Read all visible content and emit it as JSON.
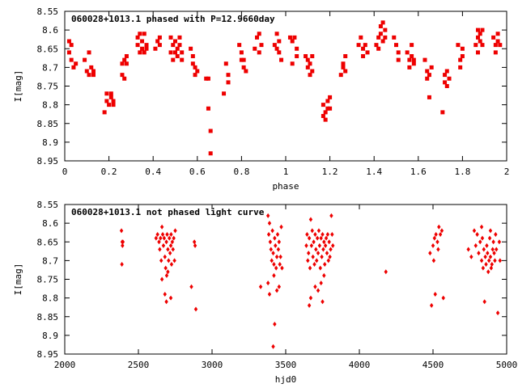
{
  "chart_data": [
    {
      "type": "scatter",
      "title": "060028+1013.1 phased with P=12.9660day",
      "xlabel": "phase",
      "ylabel": "I[mag]",
      "xlim": [
        0,
        2
      ],
      "ylim": [
        8.95,
        8.55
      ],
      "y_inverted": true,
      "xticks": [
        0,
        0.2,
        0.4,
        0.6,
        0.8,
        1,
        1.2,
        1.4,
        1.6,
        1.8,
        2
      ],
      "xtick_labels": [
        "0",
        "0.2",
        "0.4",
        "0.6",
        "0.8",
        "1",
        "1.2",
        "1.4",
        "1.6",
        "1.8",
        "2"
      ],
      "yticks": [
        8.55,
        8.6,
        8.65,
        8.7,
        8.75,
        8.8,
        8.85,
        8.9,
        8.95
      ],
      "ytick_labels": [
        "8.55",
        "8.6",
        "8.65",
        "8.7",
        "8.75",
        "8.8",
        "8.85",
        "8.9",
        "8.95"
      ],
      "grid": false,
      "color": "#ee0000",
      "marker": "filled-square",
      "points": [
        [
          0.02,
          8.63
        ],
        [
          0.02,
          8.66
        ],
        [
          0.03,
          8.64
        ],
        [
          0.03,
          8.68
        ],
        [
          0.04,
          8.7
        ],
        [
          0.05,
          8.69
        ],
        [
          0.09,
          8.68
        ],
        [
          0.1,
          8.71
        ],
        [
          0.11,
          8.66
        ],
        [
          0.11,
          8.72
        ],
        [
          0.12,
          8.7
        ],
        [
          0.13,
          8.71
        ],
        [
          0.13,
          8.72
        ],
        [
          0.18,
          8.82
        ],
        [
          0.19,
          8.77
        ],
        [
          0.19,
          8.79
        ],
        [
          0.2,
          8.8
        ],
        [
          0.21,
          8.77
        ],
        [
          0.21,
          8.78
        ],
        [
          0.22,
          8.79
        ],
        [
          0.22,
          8.8
        ],
        [
          0.26,
          8.69
        ],
        [
          0.26,
          8.72
        ],
        [
          0.27,
          8.68
        ],
        [
          0.27,
          8.73
        ],
        [
          0.28,
          8.67
        ],
        [
          0.28,
          8.69
        ],
        [
          0.33,
          8.62
        ],
        [
          0.33,
          8.64
        ],
        [
          0.34,
          8.61
        ],
        [
          0.34,
          8.66
        ],
        [
          0.35,
          8.63
        ],
        [
          0.35,
          8.65
        ],
        [
          0.36,
          8.61
        ],
        [
          0.36,
          8.66
        ],
        [
          0.37,
          8.64
        ],
        [
          0.37,
          8.65
        ],
        [
          0.41,
          8.65
        ],
        [
          0.42,
          8.63
        ],
        [
          0.43,
          8.62
        ],
        [
          0.43,
          8.64
        ],
        [
          0.48,
          8.62
        ],
        [
          0.48,
          8.66
        ],
        [
          0.49,
          8.64
        ],
        [
          0.49,
          8.68
        ],
        [
          0.5,
          8.63
        ],
        [
          0.5,
          8.66
        ],
        [
          0.51,
          8.65
        ],
        [
          0.51,
          8.67
        ],
        [
          0.52,
          8.62
        ],
        [
          0.52,
          8.64
        ],
        [
          0.53,
          8.66
        ],
        [
          0.53,
          8.68
        ],
        [
          0.57,
          8.65
        ],
        [
          0.58,
          8.67
        ],
        [
          0.58,
          8.69
        ],
        [
          0.59,
          8.7
        ],
        [
          0.59,
          8.72
        ],
        [
          0.6,
          8.71
        ],
        [
          0.64,
          8.73
        ],
        [
          0.65,
          8.73
        ],
        [
          0.65,
          8.81
        ],
        [
          0.66,
          8.87
        ],
        [
          0.66,
          8.93
        ],
        [
          0.72,
          8.77
        ],
        [
          0.73,
          8.69
        ],
        [
          0.74,
          8.72
        ],
        [
          0.74,
          8.74
        ],
        [
          0.79,
          8.64
        ],
        [
          0.8,
          8.66
        ],
        [
          0.8,
          8.68
        ],
        [
          0.81,
          8.68
        ],
        [
          0.81,
          8.7
        ],
        [
          0.82,
          8.71
        ],
        [
          0.86,
          8.65
        ],
        [
          0.87,
          8.62
        ],
        [
          0.88,
          8.61
        ],
        [
          0.88,
          8.66
        ],
        [
          0.89,
          8.64
        ],
        [
          0.95,
          8.64
        ],
        [
          0.96,
          8.61
        ],
        [
          0.96,
          8.65
        ],
        [
          0.97,
          8.63
        ],
        [
          0.97,
          8.66
        ],
        [
          0.98,
          8.68
        ],
        [
          1.02,
          8.62
        ],
        [
          1.03,
          8.63
        ],
        [
          1.03,
          8.69
        ],
        [
          1.04,
          8.62
        ],
        [
          1.05,
          8.65
        ],
        [
          1.05,
          8.67
        ],
        [
          1.09,
          8.67
        ],
        [
          1.1,
          8.68
        ],
        [
          1.1,
          8.7
        ],
        [
          1.11,
          8.72
        ],
        [
          1.11,
          8.69
        ],
        [
          1.12,
          8.71
        ],
        [
          1.12,
          8.67
        ],
        [
          1.17,
          8.8
        ],
        [
          1.17,
          8.83
        ],
        [
          1.18,
          8.82
        ],
        [
          1.18,
          8.84
        ],
        [
          1.19,
          8.81
        ],
        [
          1.19,
          8.79
        ],
        [
          1.2,
          8.78
        ],
        [
          1.2,
          8.81
        ],
        [
          1.25,
          8.72
        ],
        [
          1.26,
          8.7
        ],
        [
          1.26,
          8.69
        ],
        [
          1.27,
          8.67
        ],
        [
          1.27,
          8.71
        ],
        [
          1.33,
          8.64
        ],
        [
          1.34,
          8.62
        ],
        [
          1.35,
          8.65
        ],
        [
          1.35,
          8.67
        ],
        [
          1.36,
          8.64
        ],
        [
          1.37,
          8.66
        ],
        [
          1.41,
          8.64
        ],
        [
          1.42,
          8.62
        ],
        [
          1.42,
          8.65
        ],
        [
          1.43,
          8.59
        ],
        [
          1.43,
          8.61
        ],
        [
          1.44,
          8.58
        ],
        [
          1.44,
          8.63
        ],
        [
          1.45,
          8.6
        ],
        [
          1.45,
          8.62
        ],
        [
          1.49,
          8.62
        ],
        [
          1.5,
          8.64
        ],
        [
          1.51,
          8.66
        ],
        [
          1.51,
          8.68
        ],
        [
          1.55,
          8.66
        ],
        [
          1.56,
          8.68
        ],
        [
          1.56,
          8.7
        ],
        [
          1.57,
          8.64
        ],
        [
          1.57,
          8.67
        ],
        [
          1.58,
          8.68
        ],
        [
          1.58,
          8.69
        ],
        [
          1.63,
          8.68
        ],
        [
          1.64,
          8.71
        ],
        [
          1.64,
          8.73
        ],
        [
          1.65,
          8.72
        ],
        [
          1.65,
          8.78
        ],
        [
          1.66,
          8.7
        ],
        [
          1.71,
          8.82
        ],
        [
          1.72,
          8.72
        ],
        [
          1.72,
          8.74
        ],
        [
          1.73,
          8.71
        ],
        [
          1.73,
          8.75
        ],
        [
          1.74,
          8.73
        ],
        [
          1.78,
          8.64
        ],
        [
          1.79,
          8.68
        ],
        [
          1.79,
          8.7
        ],
        [
          1.8,
          8.65
        ],
        [
          1.8,
          8.67
        ],
        [
          1.86,
          8.64
        ],
        [
          1.87,
          8.6
        ],
        [
          1.87,
          8.62
        ],
        [
          1.87,
          8.66
        ],
        [
          1.88,
          8.63
        ],
        [
          1.88,
          8.61
        ],
        [
          1.89,
          8.6
        ],
        [
          1.89,
          8.64
        ],
        [
          1.94,
          8.62
        ],
        [
          1.95,
          8.64
        ],
        [
          1.95,
          8.66
        ],
        [
          1.96,
          8.61
        ],
        [
          1.96,
          8.63
        ],
        [
          1.97,
          8.64
        ]
      ]
    },
    {
      "type": "scatter",
      "title": "060028+1013.1 not phased light curve",
      "xlabel": "hjd0",
      "ylabel": "I[mag]",
      "xlim": [
        2000,
        5000
      ],
      "ylim": [
        8.95,
        8.55
      ],
      "y_inverted": true,
      "xticks": [
        2000,
        2500,
        3000,
        3500,
        4000,
        4500,
        5000
      ],
      "xtick_labels": [
        "2000",
        "2500",
        "3000",
        "3500",
        "4000",
        "4500",
        "5000"
      ],
      "yticks": [
        8.55,
        8.6,
        8.65,
        8.7,
        8.75,
        8.8,
        8.85,
        8.9,
        8.95
      ],
      "ytick_labels": [
        "8.55",
        "8.6",
        "8.65",
        "8.7",
        "8.75",
        "8.8",
        "8.85",
        "8.9",
        "8.95"
      ],
      "grid": false,
      "color": "#ee0000",
      "marker": "diamond",
      "points": [
        [
          2385,
          8.62
        ],
        [
          2390,
          8.65
        ],
        [
          2392,
          8.66
        ],
        [
          2395,
          8.65
        ],
        [
          2388,
          8.71
        ],
        [
          2620,
          8.64
        ],
        [
          2630,
          8.63
        ],
        [
          2640,
          8.65
        ],
        [
          2645,
          8.67
        ],
        [
          2650,
          8.64
        ],
        [
          2655,
          8.7
        ],
        [
          2660,
          8.61
        ],
        [
          2665,
          8.63
        ],
        [
          2670,
          8.66
        ],
        [
          2675,
          8.64
        ],
        [
          2680,
          8.69
        ],
        [
          2685,
          8.72
        ],
        [
          2690,
          8.65
        ],
        [
          2692,
          8.74
        ],
        [
          2695,
          8.63
        ],
        [
          2700,
          8.67
        ],
        [
          2705,
          8.7
        ],
        [
          2710,
          8.64
        ],
        [
          2715,
          8.68
        ],
        [
          2720,
          8.66
        ],
        [
          2722,
          8.63
        ],
        [
          2725,
          8.71
        ],
        [
          2730,
          8.65
        ],
        [
          2735,
          8.67
        ],
        [
          2740,
          8.64
        ],
        [
          2745,
          8.7
        ],
        [
          2750,
          8.62
        ],
        [
          2680,
          8.79
        ],
        [
          2690,
          8.81
        ],
        [
          2720,
          8.8
        ],
        [
          2660,
          8.75
        ],
        [
          2700,
          8.73
        ],
        [
          2860,
          8.77
        ],
        [
          2885,
          8.66
        ],
        [
          2880,
          8.65
        ],
        [
          2890,
          8.83
        ],
        [
          3330,
          8.77
        ],
        [
          3380,
          8.58
        ],
        [
          3385,
          8.63
        ],
        [
          3390,
          8.6
        ],
        [
          3395,
          8.65
        ],
        [
          3400,
          8.67
        ],
        [
          3405,
          8.7
        ],
        [
          3410,
          8.62
        ],
        [
          3415,
          8.68
        ],
        [
          3420,
          8.71
        ],
        [
          3425,
          8.64
        ],
        [
          3430,
          8.66
        ],
        [
          3435,
          8.72
        ],
        [
          3440,
          8.69
        ],
        [
          3445,
          8.63
        ],
        [
          3450,
          8.67
        ],
        [
          3455,
          8.65
        ],
        [
          3460,
          8.71
        ],
        [
          3465,
          8.69
        ],
        [
          3470,
          8.61
        ],
        [
          3475,
          8.72
        ],
        [
          3380,
          8.76
        ],
        [
          3390,
          8.79
        ],
        [
          3420,
          8.74
        ],
        [
          3440,
          8.78
        ],
        [
          3455,
          8.77
        ],
        [
          3425,
          8.87
        ],
        [
          3415,
          8.93
        ],
        [
          3640,
          8.66
        ],
        [
          3645,
          8.63
        ],
        [
          3650,
          8.7
        ],
        [
          3655,
          8.68
        ],
        [
          3660,
          8.64
        ],
        [
          3665,
          8.72
        ],
        [
          3670,
          8.59
        ],
        [
          3675,
          8.66
        ],
        [
          3680,
          8.62
        ],
        [
          3685,
          8.69
        ],
        [
          3690,
          8.65
        ],
        [
          3695,
          8.71
        ],
        [
          3700,
          8.63
        ],
        [
          3705,
          8.67
        ],
        [
          3710,
          8.7
        ],
        [
          3715,
          8.64
        ],
        [
          3720,
          8.68
        ],
        [
          3725,
          8.62
        ],
        [
          3730,
          8.66
        ],
        [
          3735,
          8.72
        ],
        [
          3740,
          8.64
        ],
        [
          3745,
          8.69
        ],
        [
          3750,
          8.63
        ],
        [
          3755,
          8.67
        ],
        [
          3760,
          8.65
        ],
        [
          3765,
          8.71
        ],
        [
          3770,
          8.66
        ],
        [
          3775,
          8.64
        ],
        [
          3780,
          8.68
        ],
        [
          3785,
          8.63
        ],
        [
          3790,
          8.7
        ],
        [
          3795,
          8.65
        ],
        [
          3800,
          8.69
        ],
        [
          3805,
          8.67
        ],
        [
          3810,
          8.58
        ],
        [
          3815,
          8.63
        ],
        [
          3820,
          8.66
        ],
        [
          3660,
          8.82
        ],
        [
          3670,
          8.8
        ],
        [
          3700,
          8.77
        ],
        [
          3720,
          8.78
        ],
        [
          3740,
          8.76
        ],
        [
          3750,
          8.81
        ],
        [
          3760,
          8.74
        ],
        [
          4180,
          8.73
        ],
        [
          4480,
          8.68
        ],
        [
          4490,
          8.82
        ],
        [
          4500,
          8.66
        ],
        [
          4510,
          8.64
        ],
        [
          4515,
          8.79
        ],
        [
          4520,
          8.63
        ],
        [
          4530,
          8.65
        ],
        [
          4540,
          8.61
        ],
        [
          4550,
          8.63
        ],
        [
          4560,
          8.62
        ],
        [
          4570,
          8.8
        ],
        [
          4505,
          8.7
        ],
        [
          4535,
          8.67
        ],
        [
          4740,
          8.67
        ],
        [
          4760,
          8.69
        ],
        [
          4780,
          8.62
        ],
        [
          4790,
          8.66
        ],
        [
          4800,
          8.63
        ],
        [
          4810,
          8.68
        ],
        [
          4820,
          8.65
        ],
        [
          4830,
          8.7
        ],
        [
          4835,
          8.64
        ],
        [
          4840,
          8.72
        ],
        [
          4845,
          8.67
        ],
        [
          4850,
          8.81
        ],
        [
          4855,
          8.69
        ],
        [
          4860,
          8.71
        ],
        [
          4865,
          8.66
        ],
        [
          4870,
          8.68
        ],
        [
          4875,
          8.73
        ],
        [
          4880,
          8.7
        ],
        [
          4885,
          8.64
        ],
        [
          4890,
          8.69
        ],
        [
          4895,
          8.72
        ],
        [
          4900,
          8.71
        ],
        [
          4905,
          8.67
        ],
        [
          4910,
          8.65
        ],
        [
          4915,
          8.68
        ],
        [
          4920,
          8.7
        ],
        [
          4925,
          8.63
        ],
        [
          4930,
          8.67
        ],
        [
          4940,
          8.84
        ],
        [
          4950,
          8.65
        ],
        [
          4955,
          8.7
        ],
        [
          4830,
          8.61
        ],
        [
          4890,
          8.62
        ]
      ]
    }
  ]
}
